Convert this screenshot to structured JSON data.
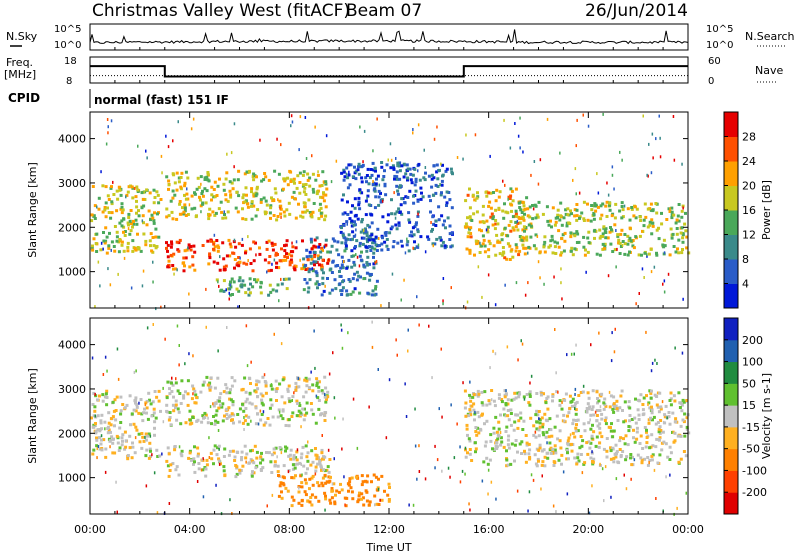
{
  "header": {
    "site": "Christmas Valley West (fitACF)",
    "beam": "Beam 07",
    "date": "26/Jun/2014",
    "nsky_label": "N.Sky",
    "nsearch_label": "N.Search",
    "freq_label": "Freq.",
    "freq_unit": "[MHz]",
    "nave_label": "Nave",
    "cpid_label": "CPID",
    "cpid_text": "normal (fast) 151 IF"
  },
  "chart_data": [
    {
      "type": "line",
      "name": "noise panel",
      "ylabel_left": "N.Sky",
      "ylabel_right": "N.Search",
      "yticks_left": [
        "10^5",
        "10^0"
      ],
      "yticks_right": [
        "10^5",
        "10^0"
      ],
      "x_hours": [
        0,
        1,
        2,
        3,
        4,
        5,
        6,
        7,
        8,
        9,
        10,
        11,
        12,
        13,
        14,
        15,
        16,
        17,
        18,
        19,
        20,
        21,
        22,
        23,
        24
      ],
      "series": [
        {
          "name": "N.Sky",
          "values": [
            0.6,
            0.8,
            0.9,
            0.9,
            1.0,
            1.1,
            1.1,
            1.2,
            1.1,
            1.2,
            1.3,
            1.2,
            1.3,
            1.2,
            1.2,
            1.1,
            1.0,
            0.9,
            0.8,
            0.9,
            0.8,
            0.8,
            0.8,
            0.8,
            0.8
          ]
        }
      ]
    },
    {
      "type": "line",
      "name": "frequency panel",
      "ylabel_left": "Freq. [MHz]",
      "ylabel_right": "Nave",
      "yticks_left": [
        "18",
        "8"
      ],
      "yticks_right": [
        "60",
        "0"
      ],
      "ylim_left": [
        8,
        18
      ],
      "ylim_right": [
        0,
        60
      ],
      "series": [
        {
          "name": "Freq.",
          "x": [
            0,
            3,
            3,
            15,
            15,
            24
          ],
          "values": [
            14.5,
            14.5,
            10.5,
            10.5,
            14.5,
            14.5
          ]
        },
        {
          "name": "Nave",
          "x": [
            0,
            24
          ],
          "values": [
            17,
            17
          ]
        }
      ]
    },
    {
      "type": "heatmap",
      "name": "power",
      "ylabel": "Slant Range [km]",
      "xlabel": "",
      "xlim": [
        0,
        24
      ],
      "ylim": [
        180,
        4600
      ],
      "yticks": [
        1000,
        2000,
        3000,
        4000
      ],
      "colorbar": {
        "label": "Power [dB]",
        "ticks": [
          4,
          8,
          12,
          16,
          20,
          24,
          28
        ],
        "range": [
          0,
          32
        ],
        "colors": [
          "#0018d8",
          "#2a5cc8",
          "#3a8a8a",
          "#4aa85a",
          "#c8c820",
          "#ffa000",
          "#ff5000",
          "#e60000"
        ]
      },
      "patches": [
        {
          "t0": 0.0,
          "t1": 2.8,
          "r0": 1450,
          "r1": 3000,
          "level": 18
        },
        {
          "t0": 3.0,
          "t1": 9.6,
          "r0": 1050,
          "r1": 1750,
          "level": 27
        },
        {
          "t0": 3.0,
          "t1": 9.5,
          "r0": 2200,
          "r1": 3300,
          "level": 18
        },
        {
          "t0": 8.5,
          "t1": 11.5,
          "r0": 500,
          "r1": 1800,
          "level": 8
        },
        {
          "t0": 10.0,
          "t1": 14.5,
          "r0": 1500,
          "r1": 3500,
          "level": 6
        },
        {
          "t0": 15.0,
          "t1": 17.5,
          "r0": 1300,
          "r1": 2900,
          "level": 20
        },
        {
          "t0": 17.0,
          "t1": 24.0,
          "r0": 1400,
          "r1": 2600,
          "level": 17
        },
        {
          "t0": 5.0,
          "t1": 8.0,
          "r0": 500,
          "r1": 900,
          "level": 13
        }
      ]
    },
    {
      "type": "heatmap",
      "name": "velocity",
      "ylabel": "Slant Range [km]",
      "xlabel": "Time UT",
      "xlim": [
        0,
        24
      ],
      "ylim": [
        180,
        4600
      ],
      "yticks": [
        1000,
        2000,
        3000,
        4000
      ],
      "xticklabels": [
        "00:00",
        "04:00",
        "08:00",
        "12:00",
        "16:00",
        "20:00",
        "00:00"
      ],
      "colorbar": {
        "label": "Velocity [m s-1]",
        "ticks": [
          200,
          100,
          50,
          15,
          -15,
          -50,
          -100,
          -200
        ],
        "colors": [
          "#1020c0",
          "#2060b0",
          "#208c40",
          "#60c030",
          "#c0c0c0",
          "#ffb020",
          "#ff8000",
          "#ff4000",
          "#e00000"
        ]
      },
      "patches": [
        {
          "t0": 0.0,
          "t1": 2.8,
          "r0": 1450,
          "r1": 3000,
          "vel": 0
        },
        {
          "t0": 3.0,
          "t1": 9.6,
          "r0": 1050,
          "r1": 1750,
          "vel": 0
        },
        {
          "t0": 3.0,
          "t1": 9.5,
          "r0": 2200,
          "r1": 3300,
          "vel": 0
        },
        {
          "t0": 7.5,
          "t1": 12.0,
          "r0": 400,
          "r1": 1100,
          "vel": -60
        },
        {
          "t0": 15.0,
          "t1": 24.0,
          "r0": 1300,
          "r1": 3000,
          "vel": 0
        }
      ]
    }
  ]
}
